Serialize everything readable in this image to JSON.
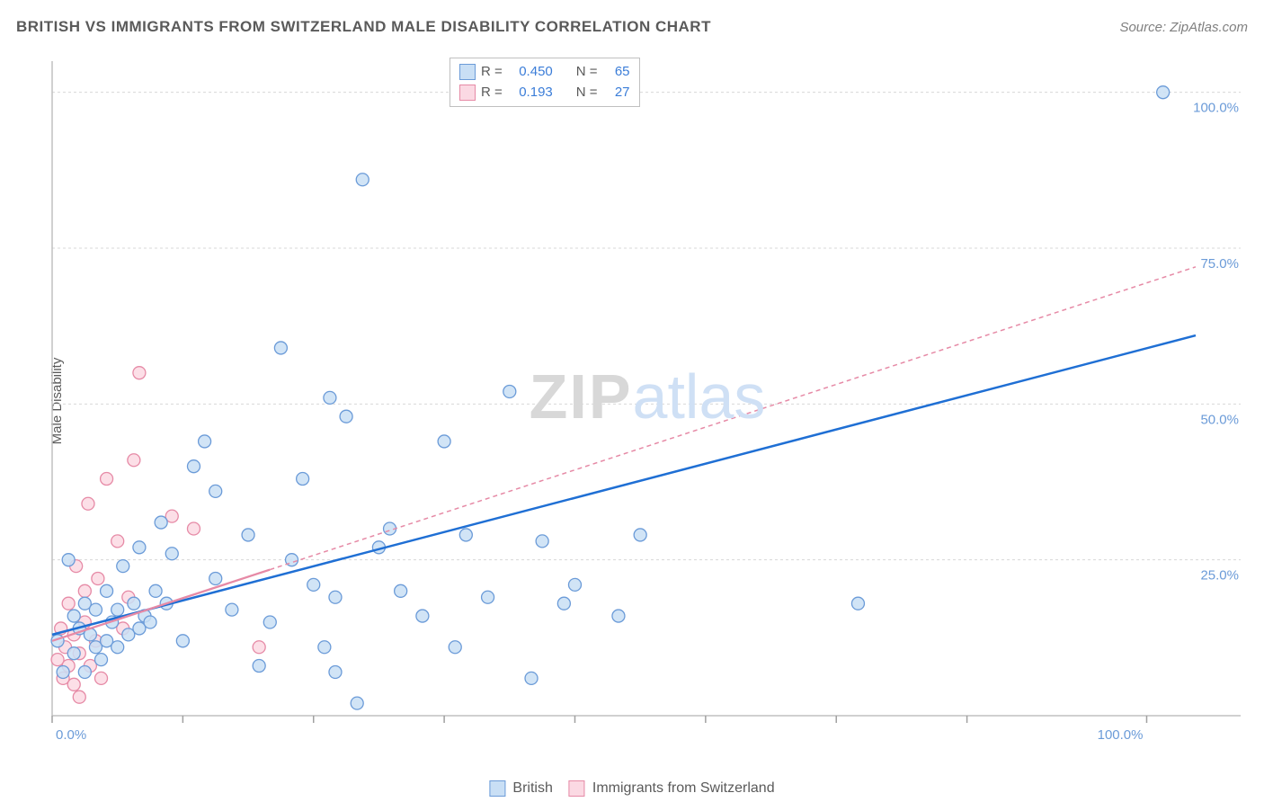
{
  "title": "BRITISH VS IMMIGRANTS FROM SWITZERLAND MALE DISABILITY CORRELATION CHART",
  "source": "Source: ZipAtlas.com",
  "y_axis_label": "Male Disability",
  "watermark": {
    "part1": "ZIP",
    "part2": "atlas"
  },
  "chart": {
    "type": "scatter",
    "background_color": "#ffffff",
    "grid_color": "#d8d8d8",
    "axis_color": "#c0c0c0",
    "tick_color": "#a0a0a0",
    "label_color": "#6b9bd8",
    "tick_label_fontsize": 15,
    "xlim": [
      0,
      105
    ],
    "ylim": [
      0,
      105
    ],
    "y_ticks": [
      {
        "v": 25,
        "label": "25.0%"
      },
      {
        "v": 50,
        "label": "50.0%"
      },
      {
        "v": 75,
        "label": "75.0%"
      },
      {
        "v": 100,
        "label": "100.0%"
      }
    ],
    "x_ticks_minor": [
      0,
      12,
      24,
      36,
      48,
      60,
      72,
      84,
      100.5
    ],
    "x_labels": [
      {
        "v": 0,
        "label": "0.0%"
      },
      {
        "v": 100.5,
        "label": "100.0%"
      }
    ],
    "series": [
      {
        "name": "British",
        "marker_fill": "#c9dff5",
        "marker_stroke": "#6b9bd8",
        "marker_radius": 7,
        "trend": {
          "color": "#1f6fd4",
          "width": 2.5,
          "dash": "none",
          "x1": 0,
          "y1": 13,
          "x2": 105,
          "y2": 61
        },
        "points": [
          [
            0.5,
            12
          ],
          [
            1,
            7
          ],
          [
            1.5,
            25
          ],
          [
            2,
            10
          ],
          [
            2,
            16
          ],
          [
            2.5,
            14
          ],
          [
            3,
            7
          ],
          [
            3,
            18
          ],
          [
            3.5,
            13
          ],
          [
            4,
            11
          ],
          [
            4,
            17
          ],
          [
            4.5,
            9
          ],
          [
            5,
            20
          ],
          [
            5,
            12
          ],
          [
            5.5,
            15
          ],
          [
            6,
            17
          ],
          [
            6,
            11
          ],
          [
            6.5,
            24
          ],
          [
            7,
            13
          ],
          [
            7.5,
            18
          ],
          [
            8,
            14
          ],
          [
            8,
            27
          ],
          [
            8.5,
            16
          ],
          [
            9,
            15
          ],
          [
            9.5,
            20
          ],
          [
            10,
            31
          ],
          [
            10.5,
            18
          ],
          [
            11,
            26
          ],
          [
            12,
            12
          ],
          [
            13,
            40
          ],
          [
            14,
            44
          ],
          [
            15,
            22
          ],
          [
            15,
            36
          ],
          [
            16.5,
            17
          ],
          [
            18,
            29
          ],
          [
            19,
            8
          ],
          [
            20,
            15
          ],
          [
            21,
            59
          ],
          [
            22,
            25
          ],
          [
            23,
            38
          ],
          [
            24,
            21
          ],
          [
            25,
            11
          ],
          [
            25.5,
            51
          ],
          [
            26,
            19
          ],
          [
            27,
            48
          ],
          [
            28,
            2
          ],
          [
            28.5,
            86
          ],
          [
            30,
            27
          ],
          [
            31,
            30
          ],
          [
            32,
            20
          ],
          [
            34,
            16
          ],
          [
            36,
            44
          ],
          [
            37,
            11
          ],
          [
            38,
            29
          ],
          [
            40,
            19
          ],
          [
            42,
            52
          ],
          [
            44,
            6
          ],
          [
            45,
            28
          ],
          [
            47,
            18
          ],
          [
            48,
            21
          ],
          [
            52,
            16
          ],
          [
            54,
            29
          ],
          [
            74,
            18
          ],
          [
            102,
            100
          ],
          [
            26,
            7
          ]
        ]
      },
      {
        "name": "Immigrants from Switzerland",
        "marker_fill": "#fbd9e3",
        "marker_stroke": "#e68aa6",
        "marker_radius": 7,
        "trend": {
          "color": "#e68aa6",
          "width": 1.5,
          "dash": "5,4",
          "x1": 0,
          "y1": 12,
          "x2": 105,
          "y2": 72,
          "solid_until_x": 20
        },
        "points": [
          [
            0.5,
            9
          ],
          [
            0.8,
            14
          ],
          [
            1,
            6
          ],
          [
            1.2,
            11
          ],
          [
            1.5,
            8
          ],
          [
            1.5,
            18
          ],
          [
            2,
            5
          ],
          [
            2,
            13
          ],
          [
            2.2,
            24
          ],
          [
            2.5,
            10
          ],
          [
            2.5,
            3
          ],
          [
            3,
            20
          ],
          [
            3,
            15
          ],
          [
            3.3,
            34
          ],
          [
            3.5,
            8
          ],
          [
            4,
            12
          ],
          [
            4.2,
            22
          ],
          [
            4.5,
            6
          ],
          [
            5,
            38
          ],
          [
            6,
            28
          ],
          [
            6.5,
            14
          ],
          [
            7,
            19
          ],
          [
            7.5,
            41
          ],
          [
            8,
            55
          ],
          [
            11,
            32
          ],
          [
            13,
            30
          ],
          [
            19,
            11
          ]
        ]
      }
    ],
    "stats_legend": {
      "rows": [
        {
          "color_fill": "#c9dff5",
          "color_stroke": "#6b9bd8",
          "r_label": "R =",
          "r": "0.450",
          "n_label": "N =",
          "n": "65"
        },
        {
          "color_fill": "#fbd9e3",
          "color_stroke": "#e68aa6",
          "r_label": "R =",
          "r": "0.193",
          "n_label": "N =",
          "n": "27"
        }
      ]
    },
    "bottom_legend": [
      {
        "fill": "#c9dff5",
        "stroke": "#6b9bd8",
        "label": "British"
      },
      {
        "fill": "#fbd9e3",
        "stroke": "#e68aa6",
        "label": "Immigrants from Switzerland"
      }
    ]
  }
}
